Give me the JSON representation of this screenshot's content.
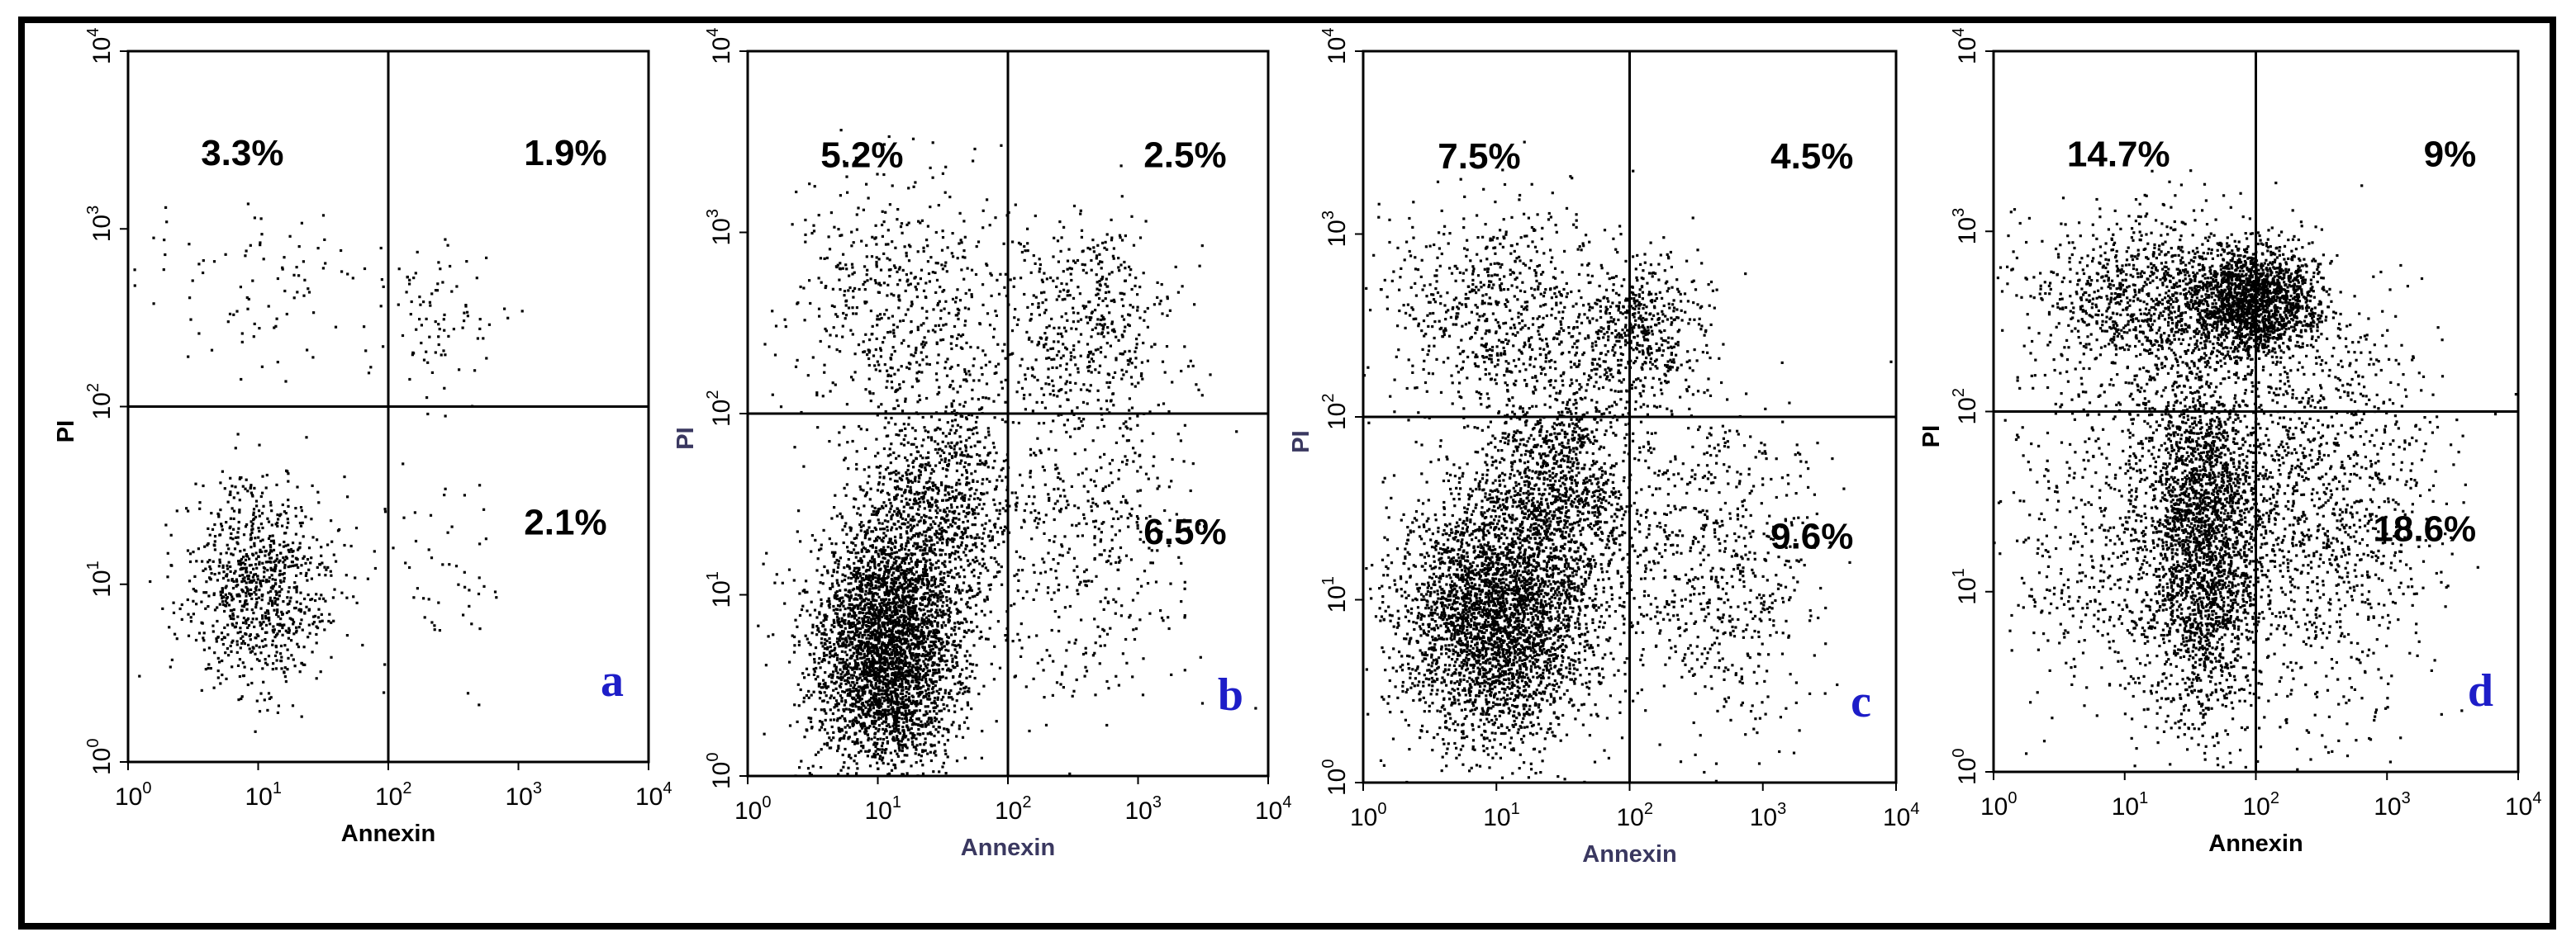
{
  "colors": {
    "ink": "#000000",
    "panel_letter": "#1d1dc8",
    "axis_label_a_d": "#000000",
    "axis_label_b_c": "#3a3860"
  },
  "chart_data": [
    {
      "type": "scatter",
      "panel": "a",
      "xlabel": "Annexin",
      "ylabel": "PI",
      "xscale": "log",
      "yscale": "log",
      "xlim": [
        1,
        10000
      ],
      "ylim": [
        1,
        10000
      ],
      "xticks": [
        "10^0",
        "10^1",
        "10^2",
        "10^3",
        "10^4"
      ],
      "yticks": [
        "10^0",
        "10^1",
        "10^2",
        "10^3",
        "10^4"
      ],
      "quadrant_gate": {
        "x": 100,
        "y": 100
      },
      "quadrant_percent": {
        "upper_left": "3.3%",
        "upper_right": "1.9%",
        "lower_right": "2.1%"
      },
      "clusters": [
        {
          "cx": 10,
          "cy": 10,
          "spread_x_decades": 0.28,
          "spread_y_decades": 0.28,
          "n": 900
        },
        {
          "cx": 10,
          "cy": 500,
          "spread_x_decades": 0.4,
          "spread_y_decades": 0.25,
          "n": 90
        },
        {
          "cx": 250,
          "cy": 300,
          "spread_x_decades": 0.25,
          "spread_y_decades": 0.2,
          "n": 90
        },
        {
          "cx": 250,
          "cy": 10,
          "spread_x_decades": 0.35,
          "spread_y_decades": 0.4,
          "n": 60
        }
      ]
    },
    {
      "type": "scatter",
      "panel": "b",
      "xlabel": "Annexin",
      "ylabel": "PI",
      "xscale": "log",
      "yscale": "log",
      "xlim": [
        1,
        10000
      ],
      "ylim": [
        1,
        10000
      ],
      "xticks": [
        "10^0",
        "10^1",
        "10^2",
        "10^3",
        "10^4"
      ],
      "yticks": [
        "10^0",
        "10^1",
        "10^2",
        "10^3",
        "10^4"
      ],
      "quadrant_gate": {
        "x": 100,
        "y": 100
      },
      "quadrant_percent": {
        "upper_left": "5.2%",
        "upper_right": "2.5%",
        "lower_right": "6.5%"
      },
      "clusters": [
        {
          "cx": 12,
          "cy": 5,
          "spread_x_decades": 0.28,
          "spread_y_decades": 0.35,
          "n": 3600
        },
        {
          "cx": 30,
          "cy": 30,
          "spread_x_decades": 0.3,
          "spread_y_decades": 0.35,
          "n": 1000
        },
        {
          "cx": 15,
          "cy": 400,
          "spread_x_decades": 0.45,
          "spread_y_decades": 0.35,
          "n": 550
        },
        {
          "cx": 400,
          "cy": 300,
          "spread_x_decades": 0.35,
          "spread_y_decades": 0.3,
          "n": 500
        },
        {
          "cx": 400,
          "cy": 20,
          "spread_x_decades": 0.4,
          "spread_y_decades": 0.5,
          "n": 450
        }
      ]
    },
    {
      "type": "scatter",
      "panel": "c",
      "xlabel": "Annexin",
      "ylabel": "PI",
      "xscale": "log",
      "yscale": "log",
      "xlim": [
        1,
        10000
      ],
      "ylim": [
        1,
        10000
      ],
      "xticks": [
        "10^0",
        "10^1",
        "10^2",
        "10^3",
        "10^4"
      ],
      "yticks": [
        "10^0",
        "10^1",
        "10^2",
        "10^3",
        "10^4"
      ],
      "quadrant_gate": {
        "x": 100,
        "y": 100
      },
      "quadrant_percent": {
        "upper_left": "7.5%",
        "upper_right": "4.5%",
        "lower_right": "9.6%"
      },
      "clusters": [
        {
          "cx": 10,
          "cy": 8,
          "spread_x_decades": 0.35,
          "spread_y_decades": 0.35,
          "n": 3400
        },
        {
          "cx": 30,
          "cy": 40,
          "spread_x_decades": 0.3,
          "spread_y_decades": 0.35,
          "n": 1200
        },
        {
          "cx": 10,
          "cy": 400,
          "spread_x_decades": 0.45,
          "spread_y_decades": 0.3,
          "n": 700
        },
        {
          "cx": 120,
          "cy": 300,
          "spread_x_decades": 0.25,
          "spread_y_decades": 0.2,
          "n": 500
        },
        {
          "cx": 400,
          "cy": 15,
          "spread_x_decades": 0.4,
          "spread_y_decades": 0.45,
          "n": 700
        }
      ]
    },
    {
      "type": "scatter",
      "panel": "d",
      "xlabel": "Annexin",
      "ylabel": "PI",
      "xscale": "log",
      "yscale": "log",
      "xlim": [
        1,
        10000
      ],
      "ylim": [
        1,
        10000
      ],
      "xticks": [
        "10^0",
        "10^1",
        "10^2",
        "10^3",
        "10^4"
      ],
      "yticks": [
        "10^0",
        "10^1",
        "10^2",
        "10^3",
        "10^4"
      ],
      "quadrant_gate": {
        "x": 100,
        "y": 100
      },
      "quadrant_percent": {
        "upper_left": "14.7%",
        "upper_right": "9%",
        "lower_right": "18.6%"
      },
      "clusters": [
        {
          "cx": 100,
          "cy": 400,
          "spread_x_decades": 0.25,
          "spread_y_decades": 0.15,
          "n": 1800
        },
        {
          "cx": 15,
          "cy": 400,
          "spread_x_decades": 0.45,
          "spread_y_decades": 0.25,
          "n": 1000
        },
        {
          "cx": 40,
          "cy": 20,
          "spread_x_decades": 0.22,
          "spread_y_decades": 0.5,
          "n": 2400
        },
        {
          "cx": 300,
          "cy": 30,
          "spread_x_decades": 0.45,
          "spread_y_decades": 0.55,
          "n": 1200
        },
        {
          "cx": 10,
          "cy": 20,
          "spread_x_decades": 0.5,
          "spread_y_decades": 0.5,
          "n": 700
        }
      ]
    }
  ]
}
